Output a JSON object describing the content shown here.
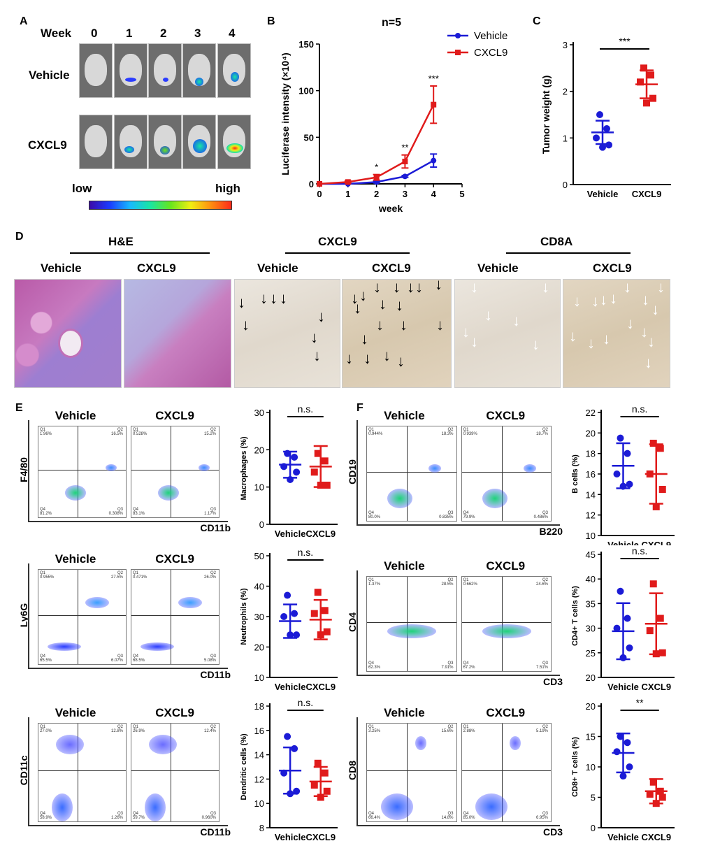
{
  "panelA": {
    "letter": "A",
    "week_label": "Week",
    "weeks": [
      "0",
      "1",
      "2",
      "3",
      "4"
    ],
    "rows": [
      "Vehicle",
      "CXCL9"
    ],
    "low": "low",
    "high": "high"
  },
  "panelB": {
    "letter": "B",
    "title": "n=5"
  },
  "panelC": {
    "letter": "C"
  },
  "panelD": {
    "letter": "D",
    "groups": [
      "H&E",
      "CXCL9",
      "CD8A"
    ],
    "sub": [
      "Vehicle",
      "CXCL9"
    ]
  },
  "panelE": {
    "letter": "E"
  },
  "panelF": {
    "letter": "F"
  },
  "flow": [
    {
      "left": "Vehicle",
      "right": "CXCL9",
      "y": "F4/80",
      "x": "CD11b",
      "q": [
        "Q1",
        "Q2",
        "Q3",
        "Q4"
      ],
      "vals_l": [
        "1.96%",
        "16.5%",
        "0.308%",
        "81.2%"
      ],
      "vals_r": [
        "0.528%",
        "15.2%",
        "1.17%",
        "83.1%"
      ]
    },
    {
      "left": "Vehicle",
      "right": "CXCL9",
      "y": "Ly6G",
      "x": "CD11b",
      "q": [
        "Q1",
        "Q2",
        "Q3",
        "Q4"
      ],
      "vals_l": [
        "0.955%",
        "27.5%",
        "6.07%",
        "65.5%"
      ],
      "vals_r": [
        "0.471%",
        "26.0%",
        "5.08%",
        "68.5%"
      ]
    },
    {
      "left": "Vehicle",
      "right": "CXCL9",
      "y": "CD11c",
      "x": "CD11b",
      "q": [
        "Q1",
        "Q2",
        "Q3",
        "Q4"
      ],
      "vals_l": [
        "27.0%",
        "12.8%",
        "1.26%",
        "58.9%"
      ],
      "vals_r": [
        "26.9%",
        "12.4%",
        "0.960%",
        "59.7%"
      ]
    },
    {
      "left": "Vehicle",
      "right": "CXCL9",
      "y": "CD19",
      "x": "B220",
      "q": [
        "Q1",
        "Q2",
        "Q3",
        "Q4"
      ],
      "vals_l": [
        "0.944%",
        "18.3%",
        "0.835%",
        "80.0%"
      ],
      "vals_r": [
        "0.939%",
        "18.7%",
        "0.486%",
        "79.9%"
      ]
    },
    {
      "left": "Vehicle",
      "right": "CXCL9",
      "y": "CD4",
      "x": "CD3",
      "q": [
        "Q1",
        "Q2",
        "Q3",
        "Q4"
      ],
      "vals_l": [
        "1.37%",
        "28.5%",
        "7.91%",
        "62.3%"
      ],
      "vals_r": [
        "0.662%",
        "24.6%",
        "7.51%",
        "67.2%"
      ]
    },
    {
      "left": "Vehicle",
      "right": "CXCL9",
      "y": "CD8",
      "x": "CD3",
      "q": [
        "Q1",
        "Q2",
        "Q3",
        "Q4"
      ],
      "vals_l": [
        "3.25%",
        "15.6%",
        "14.8%",
        "66.4%"
      ],
      "vals_r": [
        "2.88%",
        "5.19%",
        "6.95%",
        "85.0%"
      ]
    }
  ],
  "chart_data": [
    {
      "type": "line",
      "title": "n=5",
      "xlabel": "week",
      "ylabel": "Luciferase intensity (×10⁴)",
      "xlim": [
        0,
        5
      ],
      "ylim": [
        0,
        150
      ],
      "xticks": [
        "0",
        "1",
        "2",
        "3",
        "4",
        "5"
      ],
      "yticks": [
        "0",
        "50",
        "100",
        "150"
      ],
      "x": [
        0,
        1,
        2,
        3,
        4
      ],
      "series": [
        {
          "name": "Vehicle",
          "color": "#1b1bd6",
          "values": [
            0,
            0,
            2,
            8,
            25
          ],
          "err": [
            0,
            0,
            1,
            1,
            7
          ]
        },
        {
          "name": "CXCL9",
          "color": "#e01b1b",
          "values": [
            0,
            2,
            7,
            24,
            85
          ],
          "err": [
            0,
            1,
            3,
            7,
            20
          ]
        }
      ],
      "annotations": [
        {
          "x": 2,
          "text": "*"
        },
        {
          "x": 3,
          "text": "**"
        },
        {
          "x": 4,
          "text": "***"
        }
      ]
    },
    {
      "type": "scatter",
      "ylabel": "Tumor weight (g)",
      "ylim": [
        0,
        3
      ],
      "yticks": [
        "0",
        "1",
        "2",
        "3"
      ],
      "categories": [
        "Vehicle",
        "CXCL9"
      ],
      "colors": [
        "#1b1bd6",
        "#e01b1b"
      ],
      "points": [
        [
          1.5,
          1.2,
          1.0,
          0.85,
          0.8
        ],
        [
          2.5,
          2.35,
          2.2,
          1.85,
          1.75
        ]
      ],
      "mean": [
        1.12,
        2.15
      ],
      "sd": [
        0.25,
        0.3
      ],
      "sig": "***"
    },
    {
      "type": "scatter",
      "ylabel": "Macrophages (%)",
      "ylim": [
        0,
        30
      ],
      "yticks": [
        "0",
        "10",
        "20",
        "30"
      ],
      "categories": [
        "Vehicle",
        "CXCL9"
      ],
      "colors": [
        "#1b1bd6",
        "#e01b1b"
      ],
      "points": [
        [
          19,
          18,
          15.5,
          14,
          12
        ],
        [
          19,
          17,
          14,
          10.5,
          10.5
        ]
      ],
      "mean": [
        16,
        15.5
      ],
      "sd": [
        3.5,
        5.5
      ],
      "sig": "n.s."
    },
    {
      "type": "scatter",
      "ylabel": "Neutrophils (%)",
      "ylim": [
        10,
        50
      ],
      "yticks": [
        "10",
        "20",
        "30",
        "40",
        "50"
      ],
      "categories": [
        "Vehicle",
        "CXCL9"
      ],
      "colors": [
        "#1b1bd6",
        "#e01b1b"
      ],
      "points": [
        [
          37,
          31,
          30,
          24,
          24
        ],
        [
          38,
          32,
          31,
          25,
          24
        ]
      ],
      "mean": [
        28.5,
        29
      ],
      "sd": [
        5.5,
        6.5
      ],
      "sig": "n.s."
    },
    {
      "type": "scatter",
      "ylabel": "Dendritic cells (%)",
      "ylim": [
        8,
        18
      ],
      "yticks": [
        "8",
        "10",
        "12",
        "14",
        "16",
        "18"
      ],
      "categories": [
        "Vehicle",
        "CXCL9"
      ],
      "colors": [
        "#1b1bd6",
        "#e01b1b"
      ],
      "points": [
        [
          15.5,
          14.5,
          12.5,
          11,
          10.8
        ],
        [
          13.3,
          12.5,
          11.5,
          11,
          10.5
        ]
      ],
      "mean": [
        12.7,
        11.8
      ],
      "sd": [
        1.9,
        1.2
      ],
      "sig": "n.s."
    },
    {
      "type": "scatter",
      "ylabel": "B cells (%)",
      "ylim": [
        10,
        22
      ],
      "yticks": [
        "10",
        "12",
        "14",
        "16",
        "18",
        "20",
        "22"
      ],
      "categories": [
        "Vehicle",
        "CXCL9"
      ],
      "colors": [
        "#1b1bd6",
        "#e01b1b"
      ],
      "points": [
        [
          19.5,
          18,
          16,
          15,
          14.8
        ],
        [
          19,
          18.5,
          16,
          14.5,
          12.8
        ]
      ],
      "mean": [
        16.8,
        16
      ],
      "sd": [
        2.2,
        2.9
      ],
      "sig": "n.s."
    },
    {
      "type": "scatter",
      "ylabel": "CD4+ T cells (%)",
      "ylim": [
        20,
        45
      ],
      "yticks": [
        "20",
        "25",
        "30",
        "35",
        "40",
        "45"
      ],
      "categories": [
        "Vehicle",
        "CXCL9"
      ],
      "colors": [
        "#1b1bd6",
        "#e01b1b"
      ],
      "points": [
        [
          37.5,
          32,
          30,
          26,
          24
        ],
        [
          39,
          32,
          29.5,
          25,
          24.8
        ]
      ],
      "mean": [
        29.4,
        30.9
      ],
      "sd": [
        5.7,
        6.2
      ],
      "sig": "n.s."
    },
    {
      "type": "scatter",
      "ylabel": "CD8+ T cells (%)",
      "ylim": [
        0,
        20
      ],
      "yticks": [
        "0",
        "5",
        "10",
        "15",
        "20"
      ],
      "categories": [
        "Vehicle",
        "CXCL9"
      ],
      "colors": [
        "#1b1bd6",
        "#e01b1b"
      ],
      "points": [
        [
          15,
          14,
          12.5,
          10,
          8.5
        ],
        [
          7.5,
          6,
          5.5,
          5,
          4
        ]
      ],
      "mean": [
        12.3,
        6
      ],
      "sd": [
        3.2,
        2
      ],
      "sig": "**"
    }
  ]
}
